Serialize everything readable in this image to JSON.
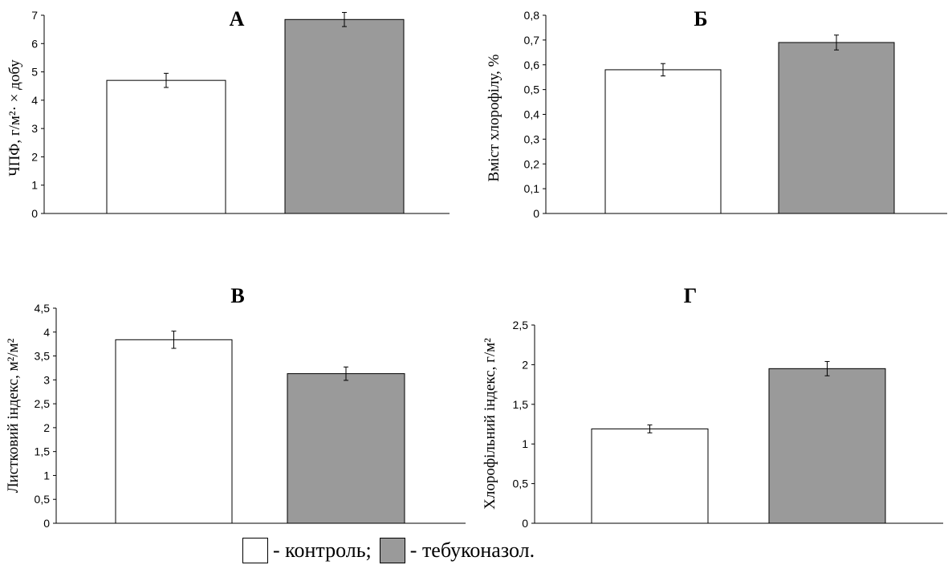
{
  "chart_data": [
    {
      "type": "bar",
      "title": "А",
      "ylabel": "ЧПФ, г/м²· × добу",
      "categories": [
        "контроль",
        "тебуконазол"
      ],
      "values": [
        4.7,
        6.85
      ],
      "errors": [
        0.25,
        0.25
      ],
      "ylim": [
        0,
        7
      ],
      "yticks": [
        "0",
        "1",
        "2",
        "3",
        "4",
        "5",
        "6",
        "7"
      ],
      "grid": false
    },
    {
      "type": "bar",
      "title": "Б",
      "ylabel": "Вміст хлорофілу, %",
      "categories": [
        "контроль",
        "тебуконазол"
      ],
      "values": [
        0.58,
        0.69
      ],
      "errors": [
        0.025,
        0.03
      ],
      "ylim": [
        0,
        0.8
      ],
      "yticks": [
        "0",
        "0,1",
        "0,2",
        "0,3",
        "0,4",
        "0,5",
        "0,6",
        "0,7",
        "0,8"
      ],
      "grid": false
    },
    {
      "type": "bar",
      "title": "В",
      "ylabel": "Листковий індекс, м²/м²",
      "categories": [
        "контроль",
        "тебуконазол"
      ],
      "values": [
        3.84,
        3.13
      ],
      "errors": [
        0.18,
        0.14
      ],
      "ylim": [
        0,
        4.5
      ],
      "yticks": [
        "0",
        "0,5",
        "1",
        "1,5",
        "2",
        "2,5",
        "3",
        "3,5",
        "4",
        "4,5"
      ],
      "grid": false
    },
    {
      "type": "bar",
      "title": "Г",
      "ylabel": "Хлорофільний індекс, г/м²",
      "categories": [
        "контроль",
        "тебуконазол"
      ],
      "values": [
        1.19,
        1.95
      ],
      "errors": [
        0.05,
        0.09
      ],
      "ylim": [
        0,
        2.5
      ],
      "yticks": [
        "0",
        "0,5",
        "1",
        "1,5",
        "2",
        "2,5"
      ],
      "grid": false
    }
  ],
  "legend": {
    "items": [
      {
        "label": "- контроль;",
        "color": "#ffffff"
      },
      {
        "label": "- тебуконазол.",
        "color": "#9a9a9a"
      }
    ]
  },
  "colors": {
    "control": "#ffffff",
    "treated": "#9a9a9a",
    "stroke": "#000000"
  }
}
